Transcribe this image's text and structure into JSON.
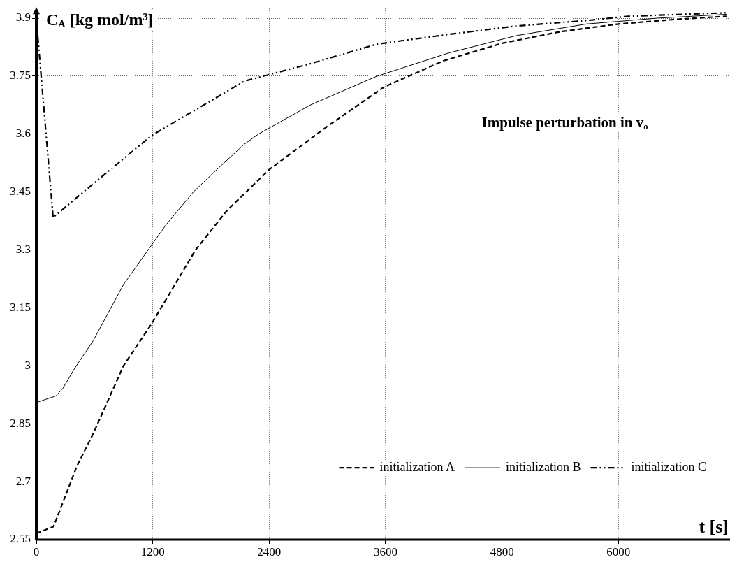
{
  "chart_data": {
    "type": "line",
    "xlabel": "t [s]",
    "ylabel": "C$_{A}$ [kg mol/m³]",
    "annotations": [
      "Impulse perturbation in v$_{o}$"
    ],
    "xlim": [
      0,
      7150
    ],
    "xticks": [
      0,
      1200,
      2400,
      3600,
      4800,
      6000
    ],
    "ylim": [
      2.55,
      3.925
    ],
    "yticks": [
      2.55,
      2.7,
      2.85,
      3,
      3.15,
      3.3,
      3.45,
      3.6,
      3.75,
      3.9
    ],
    "grid": true,
    "legend": "bottom right",
    "marker": "none",
    "series": [
      {
        "name": "initialization A",
        "color": "#000000",
        "line_style": "dashed",
        "x": [
          0,
          178,
          418,
          586,
          898,
          1186,
          1641,
          1965,
          2400,
          3000,
          3585,
          4200,
          4800,
          5400,
          6000,
          6600,
          7113
        ],
        "values": [
          2.566,
          2.584,
          2.74,
          2.824,
          3.0,
          3.108,
          3.3,
          3.402,
          3.508,
          3.62,
          3.722,
          3.79,
          3.835,
          3.865,
          3.885,
          3.897,
          3.905
        ]
      },
      {
        "name": "initialization B",
        "color": "#000000",
        "line_style": "solid",
        "x": [
          0,
          202,
          274,
          394,
          586,
          898,
          1186,
          1340,
          1618,
          1834,
          2145,
          2290,
          2822,
          3513,
          4250,
          4950,
          5670,
          6400,
          7113
        ],
        "values": [
          2.905,
          2.922,
          2.942,
          2.993,
          3.065,
          3.21,
          3.312,
          3.366,
          3.45,
          3.502,
          3.574,
          3.6,
          3.675,
          3.75,
          3.81,
          3.855,
          3.885,
          3.9,
          3.91
        ]
      },
      {
        "name": "initialization C",
        "color": "#000000",
        "line_style": "dotted",
        "x": [
          0,
          173,
          466,
          1186,
          2145,
          2822,
          3513,
          4248,
          4953,
          5673,
          6105,
          7113
        ],
        "values": [
          3.898,
          3.384,
          3.446,
          3.596,
          3.737,
          3.782,
          3.833,
          3.858,
          3.88,
          3.894,
          3.905,
          3.914
        ]
      }
    ]
  }
}
